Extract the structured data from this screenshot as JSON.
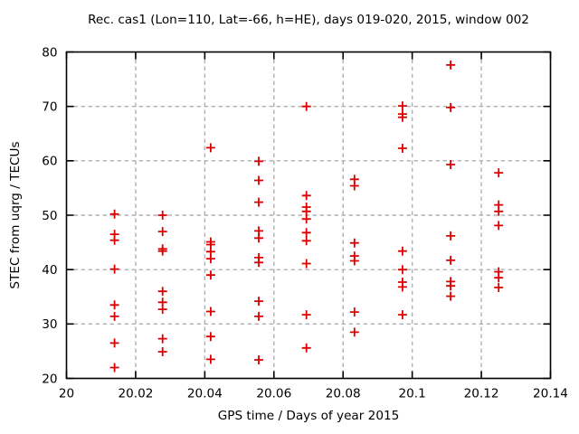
{
  "chart_data": {
    "type": "scatter",
    "title": "Rec. cas1 (Lon=110, Lat=-66, h=HE), days 019-020, 2015, window 002",
    "xlabel": "GPS time / Days of year 2015",
    "ylabel": "STEC from uqrg / TECUs",
    "xlim": [
      20,
      20.14
    ],
    "ylim": [
      20,
      80
    ],
    "x_tick_values": [
      20,
      20.02,
      20.04,
      20.06,
      20.08,
      20.1,
      20.12,
      20.14
    ],
    "x_tick_labels": [
      "20",
      "20.02",
      "20.04",
      "20.06",
      "20.08",
      "20.1",
      "20.12",
      "20.14"
    ],
    "y_tick_values": [
      20,
      30,
      40,
      50,
      60,
      70,
      80
    ],
    "y_tick_labels": [
      "20",
      "30",
      "40",
      "50",
      "60",
      "70",
      "80"
    ],
    "grid": true,
    "legend": "none",
    "marker": {
      "shape": "plus",
      "color": "#dd0000",
      "size": 10
    },
    "grid_color": "#b0b0b0",
    "border_color": "#000000",
    "background_color": "#ffffff",
    "series": [
      {
        "name": "STEC",
        "points": [
          {
            "x": 20.0139,
            "ys": [
              50.2,
              46.5,
              45.4,
              40.1,
              33.5,
              31.4,
              26.5,
              22.0
            ]
          },
          {
            "x": 20.0278,
            "ys": [
              50.0,
              47.0,
              43.8,
              43.4,
              36.0,
              34.0,
              32.7,
              27.3,
              24.9
            ]
          },
          {
            "x": 20.0417,
            "ys": [
              62.4,
              45.1,
              44.6,
              43.3,
              42.0,
              39.0,
              32.3,
              27.7,
              23.5
            ]
          },
          {
            "x": 20.0556,
            "ys": [
              59.9,
              56.4,
              52.4,
              47.1,
              45.8,
              42.2,
              41.3,
              34.2,
              31.4,
              23.4
            ]
          },
          {
            "x": 20.0694,
            "ys": [
              70.0,
              53.6,
              51.5,
              50.7,
              49.3,
              46.8,
              45.3,
              41.1,
              31.7,
              25.6
            ]
          },
          {
            "x": 20.0833,
            "ys": [
              56.6,
              55.4,
              44.9,
              42.5,
              41.6,
              32.2,
              28.5
            ]
          },
          {
            "x": 20.0972,
            "ys": [
              70.1,
              68.6,
              68.0,
              62.3,
              43.4,
              40.0,
              37.7,
              36.8,
              31.7
            ]
          },
          {
            "x": 20.1111,
            "ys": [
              77.6,
              69.8,
              59.3,
              46.2,
              41.7,
              37.8,
              37.0,
              35.1
            ]
          },
          {
            "x": 20.125,
            "ys": [
              57.8,
              51.9,
              50.7,
              48.1,
              39.6,
              38.5,
              36.7
            ]
          }
        ]
      }
    ]
  }
}
